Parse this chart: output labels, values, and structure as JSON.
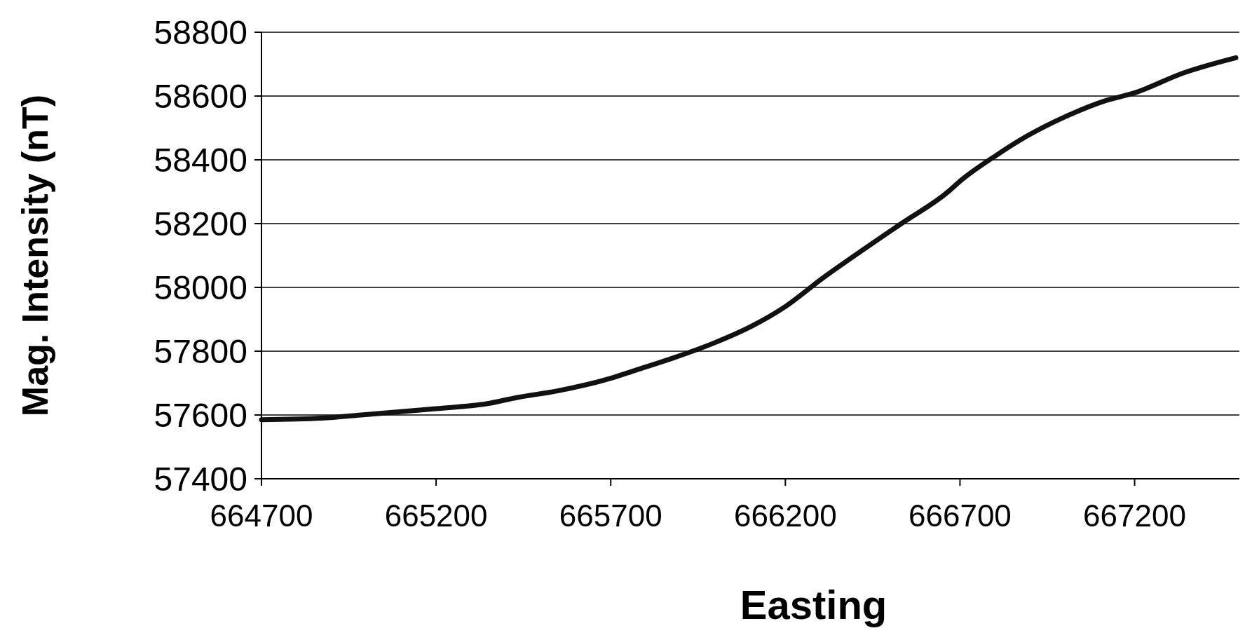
{
  "chart_data": {
    "type": "line",
    "xlabel": "Easting",
    "ylabel": "Mag. Intensity (nT)",
    "x": [
      664700,
      664873,
      664985,
      665200,
      665344,
      665433,
      665545,
      665700,
      665770,
      665882,
      665994,
      666106,
      666200,
      666308,
      666420,
      666532,
      666666,
      666700,
      666801,
      666891,
      667003,
      667115,
      667200,
      667339,
      667490
    ],
    "series": [
      {
        "color": "#111111",
        "values": [
          57585,
          57590,
          57600,
          57620,
          57635,
          57655,
          57675,
          57715,
          57740,
          57780,
          57825,
          57880,
          57940,
          58030,
          58116,
          58200,
          58300,
          58333,
          58412,
          58474,
          58536,
          58585,
          58610,
          58672,
          58720
        ]
      }
    ],
    "xlim": [
      664700,
      667500
    ],
    "xticks": [
      664700,
      665200,
      665700,
      666200,
      666700,
      667200
    ],
    "ylim": [
      57400,
      58800
    ],
    "yticks": [
      57400,
      57600,
      57800,
      58000,
      58200,
      58400,
      58600,
      58800
    ],
    "grid": "y",
    "marker": "none",
    "line_style": "solid"
  }
}
